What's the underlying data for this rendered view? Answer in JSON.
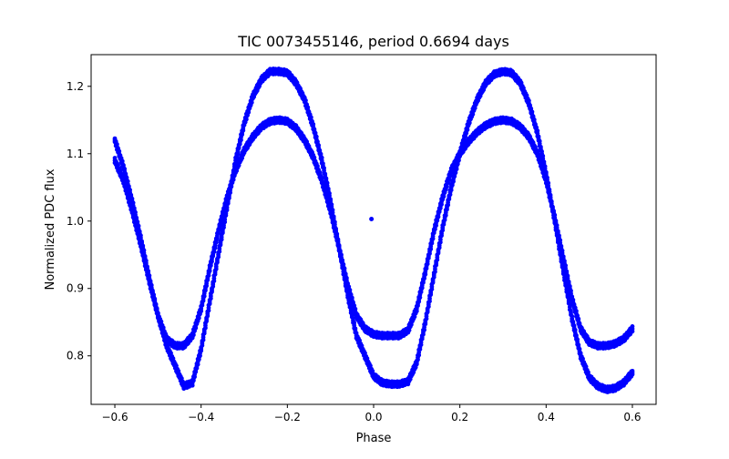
{
  "chart_data": {
    "type": "scatter",
    "title": "TIC 0073455146, period 0.6694 days",
    "xlabel": "Phase",
    "ylabel": "Normalized PDC flux",
    "xlim": [
      -0.655,
      0.655
    ],
    "ylim": [
      0.728,
      1.247
    ],
    "xticks": [
      -0.6,
      -0.4,
      -0.2,
      0.0,
      0.2,
      0.4,
      0.6
    ],
    "xtick_labels": [
      "−0.6",
      "−0.4",
      "−0.2",
      "0.0",
      "0.2",
      "0.4",
      "0.6"
    ],
    "yticks": [
      0.8,
      0.9,
      1.0,
      1.1,
      1.2
    ],
    "ytick_labels": [
      "0.8",
      "0.9",
      "1.0",
      "1.1",
      "1.2"
    ],
    "grid": false,
    "legend": "none",
    "marker_color": "#0000ff",
    "x_range": [
      -0.6,
      0.6
    ],
    "series": [
      {
        "x": [
          -0.6,
          -0.58,
          -0.56,
          -0.54,
          -0.52,
          -0.5,
          -0.48,
          -0.46,
          -0.44,
          -0.42,
          -0.4,
          -0.38,
          -0.36,
          -0.34,
          -0.32,
          -0.3,
          -0.28,
          -0.26,
          -0.24,
          -0.22,
          -0.2,
          -0.18,
          -0.16,
          -0.14,
          -0.12,
          -0.1,
          -0.08,
          -0.06,
          -0.04,
          -0.02,
          0.0,
          0.02,
          0.04,
          0.06,
          0.08,
          0.1,
          0.12,
          0.14,
          0.16,
          0.18,
          0.2,
          0.22,
          0.24,
          0.26,
          0.28,
          0.3,
          0.32,
          0.34,
          0.36,
          0.38,
          0.4,
          0.42,
          0.44,
          0.46,
          0.48,
          0.5,
          0.52,
          0.54,
          0.56,
          0.58,
          0.6
        ],
        "y": [
          1.12,
          1.08,
          1.03,
          0.975,
          0.915,
          0.86,
          0.815,
          0.785,
          0.755,
          0.76,
          0.81,
          0.88,
          0.95,
          1.02,
          1.09,
          1.145,
          1.185,
          1.21,
          1.222,
          1.222,
          1.22,
          1.205,
          1.18,
          1.14,
          1.09,
          1.03,
          0.96,
          0.89,
          0.83,
          0.8,
          0.77,
          0.76,
          0.758,
          0.758,
          0.762,
          0.79,
          0.85,
          0.92,
          0.99,
          1.05,
          1.1,
          1.145,
          1.18,
          1.205,
          1.218,
          1.222,
          1.22,
          1.205,
          1.175,
          1.13,
          1.07,
          1.0,
          0.925,
          0.855,
          0.8,
          0.768,
          0.755,
          0.75,
          0.752,
          0.76,
          0.775
        ]
      },
      {
        "x": [
          -0.6,
          -0.58,
          -0.56,
          -0.54,
          -0.52,
          -0.5,
          -0.48,
          -0.46,
          -0.44,
          -0.42,
          -0.4,
          -0.38,
          -0.36,
          -0.34,
          -0.32,
          -0.3,
          -0.28,
          -0.26,
          -0.24,
          -0.22,
          -0.2,
          -0.18,
          -0.16,
          -0.14,
          -0.12,
          -0.1,
          -0.08,
          -0.06,
          -0.04,
          -0.02,
          0.0,
          0.02,
          0.04,
          0.06,
          0.08,
          0.1,
          0.12,
          0.14,
          0.16,
          0.18,
          0.2,
          0.22,
          0.24,
          0.26,
          0.28,
          0.3,
          0.32,
          0.34,
          0.36,
          0.38,
          0.4,
          0.42,
          0.44,
          0.46,
          0.48,
          0.5,
          0.52,
          0.54,
          0.56,
          0.58,
          0.6
        ],
        "y": [
          1.09,
          1.06,
          1.015,
          0.965,
          0.91,
          0.86,
          0.825,
          0.815,
          0.815,
          0.83,
          0.87,
          0.93,
          0.985,
          1.035,
          1.075,
          1.105,
          1.125,
          1.14,
          1.148,
          1.15,
          1.148,
          1.138,
          1.12,
          1.095,
          1.06,
          1.015,
          0.96,
          0.905,
          0.86,
          0.84,
          0.832,
          0.83,
          0.83,
          0.83,
          0.838,
          0.87,
          0.925,
          0.985,
          1.035,
          1.075,
          1.1,
          1.118,
          1.132,
          1.142,
          1.148,
          1.15,
          1.148,
          1.14,
          1.125,
          1.1,
          1.06,
          1.005,
          0.945,
          0.885,
          0.84,
          0.82,
          0.815,
          0.815,
          0.818,
          0.825,
          0.84
        ]
      },
      {
        "x": [
          -0.005
        ],
        "y": [
          1.003
        ]
      }
    ]
  }
}
